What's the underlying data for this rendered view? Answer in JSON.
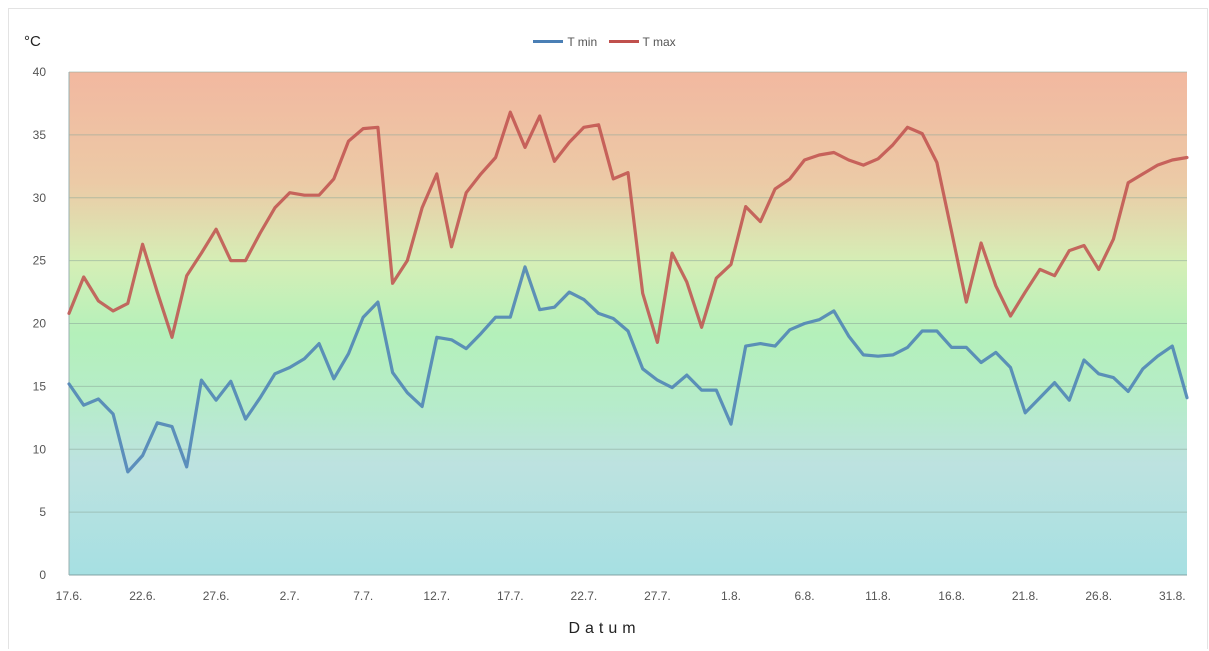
{
  "chart_data": {
    "type": "line",
    "title": "",
    "unit_label": "°C",
    "xlabel": "Datum",
    "ylabel": "",
    "ylim": [
      0,
      40
    ],
    "y_ticks": [
      0,
      5,
      10,
      15,
      20,
      25,
      30,
      35,
      40
    ],
    "x_tick_labels": [
      "17.6.",
      "22.6.",
      "27.6.",
      "2.7.",
      "7.7.",
      "12.7.",
      "17.7.",
      "22.7.",
      "27.7.",
      "1.8.",
      "6.8.",
      "11.8.",
      "16.8.",
      "21.8.",
      "26.8.",
      "31.8."
    ],
    "x_tick_every": 5,
    "grid": true,
    "legend_position": "top-center",
    "background": "vertical gradient from teal (cold) through green to salmon (warm)",
    "series": [
      {
        "name": "T min",
        "color": "#4a7fb5",
        "values": [
          15.2,
          13.5,
          14.0,
          12.8,
          8.2,
          9.5,
          12.1,
          11.8,
          8.6,
          15.5,
          13.9,
          15.4,
          12.4,
          14.1,
          16.0,
          16.5,
          17.2,
          18.4,
          15.6,
          17.6,
          20.5,
          21.7,
          16.1,
          14.5,
          13.4,
          18.9,
          18.7,
          18.0,
          19.2,
          20.5,
          20.5,
          24.5,
          21.1,
          21.3,
          22.5,
          21.9,
          20.8,
          20.4,
          19.4,
          16.4,
          15.5,
          14.9,
          15.9,
          14.7,
          14.7,
          12.0,
          18.2,
          18.4,
          18.2,
          19.5,
          20.0,
          20.3,
          21.0,
          19.0,
          17.5,
          17.4,
          17.5,
          18.1,
          19.4,
          19.4,
          18.1,
          18.1,
          16.9,
          17.7,
          16.5,
          12.9,
          14.1,
          15.3,
          13.9,
          17.1,
          16.0,
          15.7,
          14.6,
          16.4,
          17.4,
          18.2,
          14.1
        ]
      },
      {
        "name": "T max",
        "color": "#c0504d",
        "values": [
          20.8,
          23.7,
          21.8,
          21.0,
          21.6,
          26.3,
          22.5,
          18.9,
          23.8,
          25.6,
          27.5,
          25.0,
          25.0,
          27.2,
          29.2,
          30.4,
          30.2,
          30.2,
          31.5,
          34.5,
          35.5,
          35.6,
          23.2,
          25.0,
          29.2,
          31.9,
          26.1,
          30.4,
          31.9,
          33.2,
          36.8,
          34.0,
          36.5,
          32.9,
          34.4,
          35.6,
          35.8,
          31.5,
          32.0,
          22.4,
          18.5,
          25.6,
          23.3,
          19.7,
          23.6,
          24.7,
          29.3,
          28.1,
          30.7,
          31.5,
          33.0,
          33.4,
          33.6,
          33.0,
          32.6,
          33.1,
          34.2,
          35.6,
          35.1,
          32.8,
          27.3,
          21.7,
          26.4,
          23.0,
          20.6,
          22.5,
          24.3,
          23.8,
          25.8,
          26.2,
          24.3,
          26.7,
          31.2,
          31.9,
          32.6,
          33.0,
          33.2
        ]
      }
    ]
  }
}
